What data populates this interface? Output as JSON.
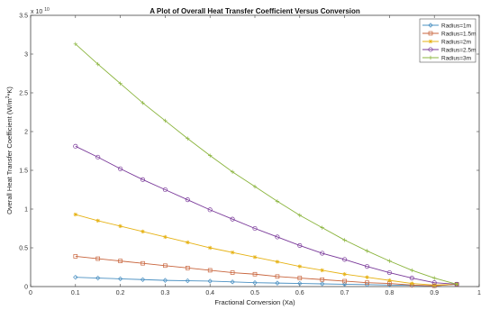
{
  "chart_data": {
    "type": "line",
    "title": "A Plot of Overall Heat Transfer Coefficient Versus Conversion",
    "xlabel": "Fractional Conversion (Xa)",
    "ylabel": "Overall Heat Transfer Coefficient (W/m",
    "ylabel_sup": "2",
    "ylabel_tail": "*K)",
    "exponent_base": "x 10",
    "exponent_power": "10",
    "xlim": [
      0,
      1
    ],
    "ylim": [
      0,
      3.5
    ],
    "xticks": [
      "0",
      "0.1",
      "0.2",
      "0.3",
      "0.4",
      "0.5",
      "0.6",
      "0.7",
      "0.8",
      "0.9",
      "1"
    ],
    "yticks": [
      "0",
      "0.5",
      "1",
      "1.5",
      "2",
      "2.5",
      "3",
      "3.5"
    ],
    "legend_position": "top-right",
    "x": [
      0.1,
      0.15,
      0.2,
      0.25,
      0.3,
      0.35,
      0.4,
      0.45,
      0.5,
      0.55,
      0.6,
      0.65,
      0.7,
      0.75,
      0.8,
      0.85,
      0.9,
      0.95
    ],
    "series": [
      {
        "name": "Radius=1m",
        "color": "#4a90c2",
        "marker": "diamond",
        "values": [
          0.12,
          0.11,
          0.1,
          0.09,
          0.08,
          0.075,
          0.07,
          0.06,
          0.05,
          0.045,
          0.04,
          0.035,
          0.03,
          0.025,
          0.02,
          0.015,
          0.01,
          0.03
        ]
      },
      {
        "name": "Radius=1.5m",
        "color": "#c8643c",
        "marker": "square",
        "values": [
          0.39,
          0.36,
          0.33,
          0.3,
          0.27,
          0.24,
          0.21,
          0.18,
          0.16,
          0.13,
          0.11,
          0.09,
          0.07,
          0.05,
          0.04,
          0.02,
          0.01,
          0.03
        ]
      },
      {
        "name": "Radius=2m",
        "color": "#e6b214",
        "marker": "star",
        "values": [
          0.93,
          0.85,
          0.78,
          0.71,
          0.64,
          0.57,
          0.5,
          0.44,
          0.38,
          0.32,
          0.26,
          0.21,
          0.16,
          0.12,
          0.08,
          0.04,
          0.02,
          0.03
        ]
      },
      {
        "name": "Radius=2.5m",
        "color": "#7a3a9a",
        "marker": "circle",
        "values": [
          1.81,
          1.67,
          1.52,
          1.38,
          1.25,
          1.12,
          0.99,
          0.87,
          0.75,
          0.64,
          0.53,
          0.43,
          0.35,
          0.26,
          0.18,
          0.11,
          0.05,
          0.03
        ]
      },
      {
        "name": "Radius=3m",
        "color": "#8ab43c",
        "marker": "plus",
        "values": [
          3.13,
          2.87,
          2.62,
          2.37,
          2.14,
          1.91,
          1.69,
          1.48,
          1.29,
          1.1,
          0.92,
          0.76,
          0.6,
          0.46,
          0.33,
          0.21,
          0.11,
          0.03
        ]
      }
    ]
  }
}
